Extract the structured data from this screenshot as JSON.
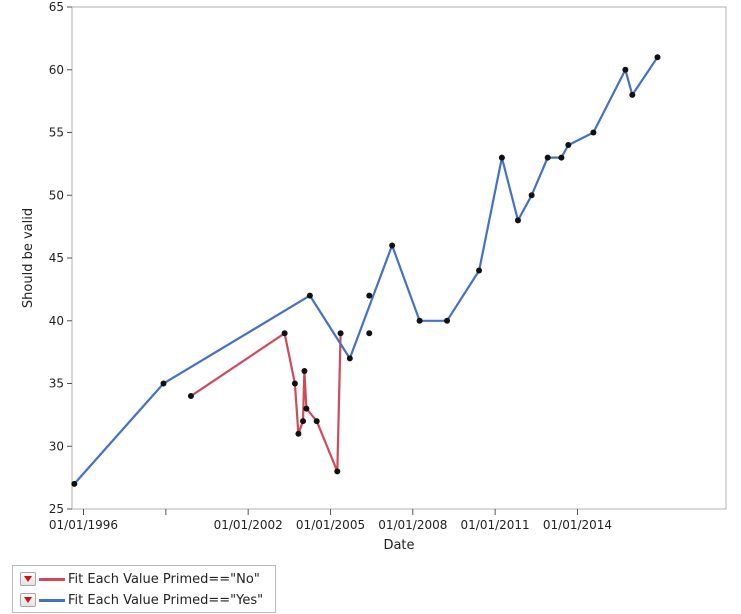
{
  "chart_data": {
    "type": "line",
    "title": "",
    "xlabel": "Date",
    "ylabel": "Should be valid",
    "ylim": [
      25,
      65
    ],
    "yticks": [
      25,
      30,
      35,
      40,
      45,
      50,
      55,
      60,
      65
    ],
    "xlim": [
      "1995-08-01",
      "2019-06-01"
    ],
    "xticks": [
      {
        "date": "1996-01-01",
        "label": "01/01/1996"
      },
      {
        "date": "2002-01-01",
        "label": "01/01/2002"
      },
      {
        "date": "2005-01-01",
        "label": "01/01/2005"
      },
      {
        "date": "2008-01-01",
        "label": "01/01/2008"
      },
      {
        "date": "2011-01-01",
        "label": "01/01/2011"
      },
      {
        "date": "2014-01-01",
        "label": "01/01/2014"
      }
    ],
    "x_minor_ticks": [
      "1999-01-01"
    ],
    "grid": false,
    "legend_position": "bottom-left",
    "series": [
      {
        "name": "Fit Each Value Primed==\"No\"",
        "color": "#d04a5a",
        "points": [
          {
            "x": "1999-12-01",
            "y": 34
          },
          {
            "x": "2003-05-01",
            "y": 39
          },
          {
            "x": "2003-09-15",
            "y": 35
          },
          {
            "x": "2003-11-01",
            "y": 31
          },
          {
            "x": "2004-01-01",
            "y": 32
          },
          {
            "x": "2004-01-20",
            "y": 36
          },
          {
            "x": "2004-02-15",
            "y": 33
          },
          {
            "x": "2004-07-01",
            "y": 32
          },
          {
            "x": "2005-04-01",
            "y": 28
          },
          {
            "x": "2005-05-15",
            "y": 39
          }
        ]
      },
      {
        "name": "Fit Each Value Primed==\"Yes\"",
        "color": "#4472c4",
        "points": [
          {
            "x": "1995-09-01",
            "y": 27
          },
          {
            "x": "1998-12-01",
            "y": 35
          },
          {
            "x": "2004-04-01",
            "y": 42
          },
          {
            "x": "2005-09-15",
            "y": 37
          },
          {
            "x": "2007-04-01",
            "y": 46
          },
          {
            "x": "2008-04-01",
            "y": 40
          },
          {
            "x": "2009-04-01",
            "y": 40
          },
          {
            "x": "2010-06-01",
            "y": 44
          },
          {
            "x": "2011-04-01",
            "y": 53
          },
          {
            "x": "2011-11-01",
            "y": 48
          },
          {
            "x": "2012-05-01",
            "y": 50
          },
          {
            "x": "2012-12-01",
            "y": 53
          },
          {
            "x": "2013-06-01",
            "y": 53
          },
          {
            "x": "2013-09-01",
            "y": 54
          },
          {
            "x": "2014-08-01",
            "y": 55
          },
          {
            "x": "2015-10-01",
            "y": 60
          },
          {
            "x": "2016-01-01",
            "y": 58
          },
          {
            "x": "2016-12-01",
            "y": 61
          }
        ]
      }
    ],
    "unconnected_points": [
      {
        "x": "2006-06-01",
        "y": 42
      },
      {
        "x": "2006-06-01",
        "y": 39
      }
    ]
  }
}
